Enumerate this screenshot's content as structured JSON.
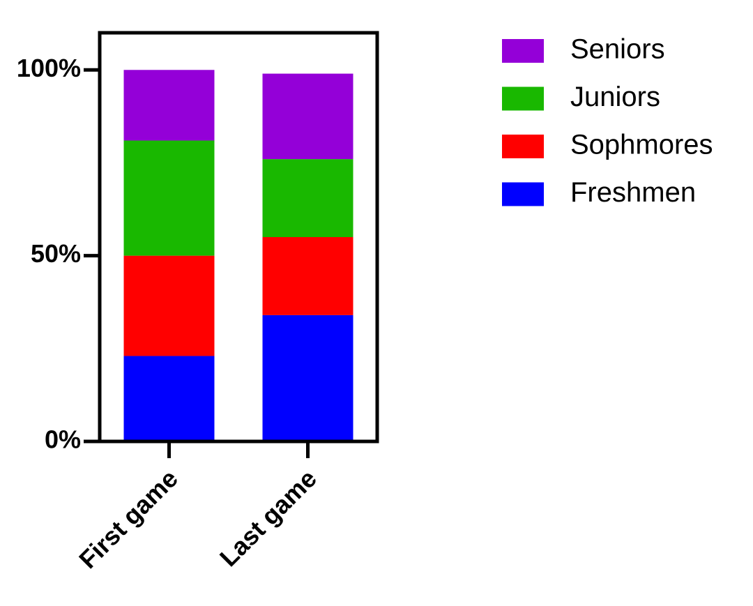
{
  "chart_data": {
    "type": "stacked_bar",
    "categories": [
      "First game",
      "Last game"
    ],
    "series": [
      {
        "name": "Freshmen",
        "color": "#0000ff",
        "values": [
          23,
          34
        ]
      },
      {
        "name": "Sophmores",
        "color": "#ff0000",
        "values": [
          27,
          21
        ]
      },
      {
        "name": "Juniors",
        "color": "#19b800",
        "values": [
          31,
          21
        ]
      },
      {
        "name": "Seniors",
        "color": "#9400d8",
        "values": [
          19,
          23
        ]
      }
    ],
    "ylim": [
      0,
      110
    ],
    "yticks": [
      {
        "value": 0,
        "label": "0%"
      },
      {
        "value": 50,
        "label": "50%"
      },
      {
        "value": 100,
        "label": "100%"
      }
    ],
    "grid": false,
    "legend": "right"
  }
}
